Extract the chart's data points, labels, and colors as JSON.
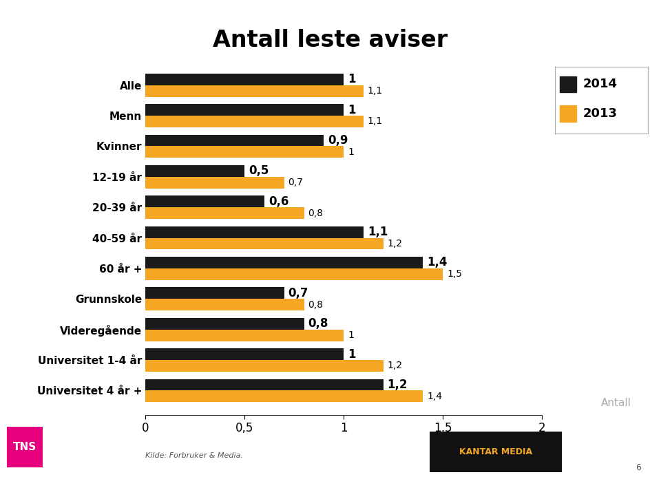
{
  "title": "Antall leste aviser",
  "categories": [
    "Alle",
    "Menn",
    "Kvinner",
    "12-19 år",
    "20-39 år",
    "40-59 år",
    "60 år +",
    "Grunnskole",
    "Videregående",
    "Universitet 1-4 år",
    "Universitet 4 år +"
  ],
  "values_2014": [
    1.0,
    1.0,
    0.9,
    0.5,
    0.6,
    1.1,
    1.4,
    0.7,
    0.8,
    1.0,
    1.2
  ],
  "values_2013": [
    1.1,
    1.1,
    1.0,
    0.7,
    0.8,
    1.2,
    1.5,
    0.8,
    1.0,
    1.2,
    1.4
  ],
  "color_2014": "#1a1a1a",
  "color_2013": "#f5a623",
  "xlim": [
    0,
    2
  ],
  "xticks": [
    0,
    0.5,
    1,
    1.5,
    2
  ],
  "xtick_labels": [
    "0",
    "0,5",
    "1",
    "1,5",
    "2"
  ],
  "ylabel_text": "Antall",
  "source_text": "Kilde: Forbruker & Media.",
  "page_number": "6",
  "bar_height": 0.38,
  "title_fontsize": 24,
  "label_fontsize": 11,
  "tick_fontsize": 12,
  "annotation_fontsize_2014": 12,
  "annotation_fontsize_2013": 10,
  "background_color": "#ffffff",
  "legend_fontsize": 13
}
